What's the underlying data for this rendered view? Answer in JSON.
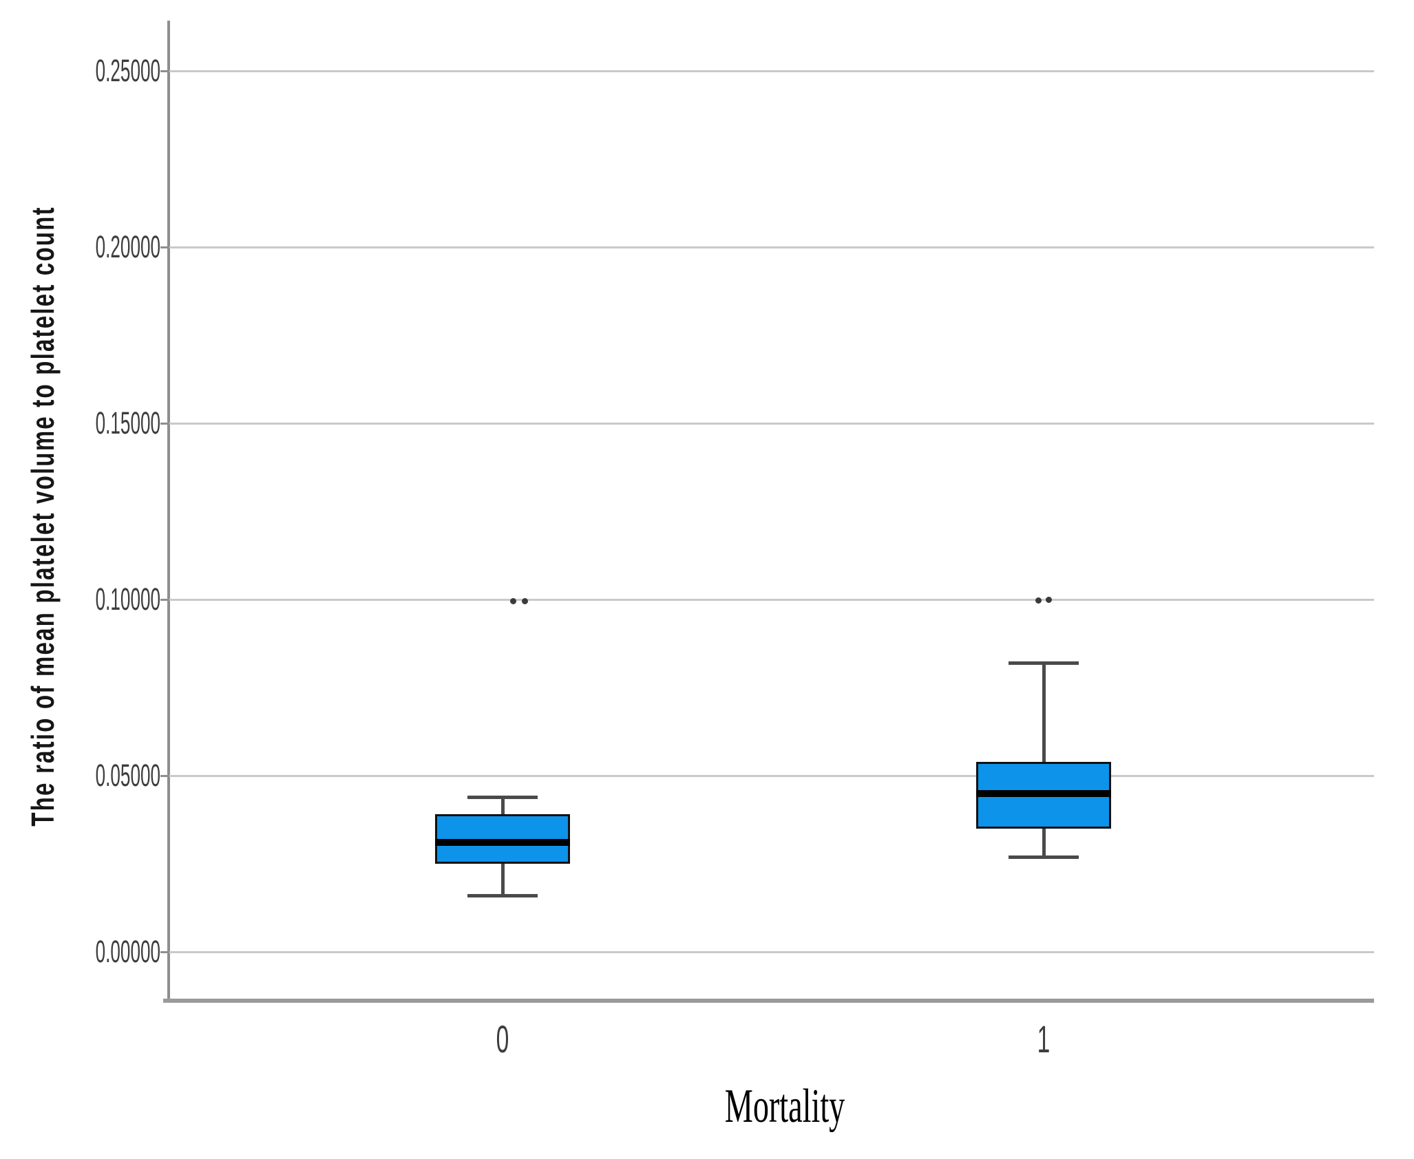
{
  "chart_data": {
    "type": "boxplot",
    "title": "",
    "xlabel": "Mortality",
    "ylabel": "The ratio of mean platelet volume to platelet count",
    "categories": [
      "0",
      "1"
    ],
    "y_ticks": [
      {
        "value": 0.0,
        "label": "0.00000"
      },
      {
        "value": 0.05,
        "label": "0.05000"
      },
      {
        "value": 0.1,
        "label": "0.10000"
      },
      {
        "value": 0.15,
        "label": "0.15000"
      },
      {
        "value": 0.2,
        "label": "0.20000"
      },
      {
        "value": 0.25,
        "label": "0.25000"
      }
    ],
    "ylim": [
      -0.014,
      0.264
    ],
    "grid": "horizontal-only",
    "legend": "none",
    "series": [
      {
        "category": "0",
        "whisker_low": 0.016,
        "q1": 0.025,
        "median": 0.031,
        "q3": 0.039,
        "whisker_high": 0.044,
        "outliers": [
          0.0995,
          0.0995
        ]
      },
      {
        "category": "1",
        "whisker_low": 0.027,
        "q1": 0.035,
        "median": 0.045,
        "q3": 0.054,
        "whisker_high": 0.082,
        "outliers": [
          0.0998,
          0.1
        ]
      }
    ],
    "colors": {
      "box_fill": "#0d93e9",
      "box_border": "#101010",
      "median_line": "#000000",
      "whisker": "#4a4a4a",
      "outlier_dot": "#3a3a3a",
      "gridline": "#c9c9c9",
      "axis_line": "#8e8e8e",
      "tick_label": "#3d3d3d",
      "axis_label": "#161616",
      "background": "#ffffff"
    }
  }
}
